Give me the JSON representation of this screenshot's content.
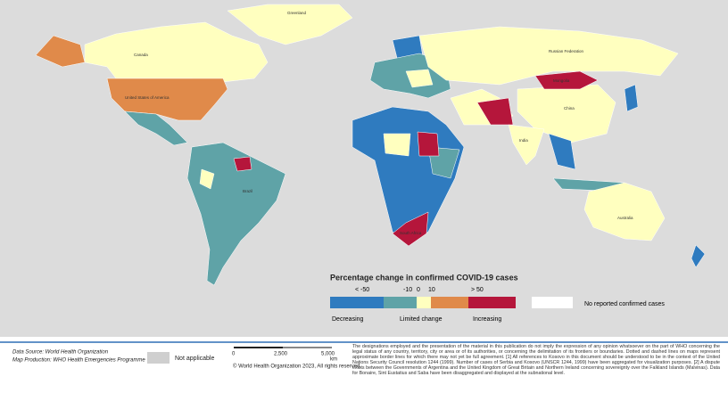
{
  "map": {
    "country_labels": [
      "Greenland",
      "Canada",
      "United States of America",
      "Brazil",
      "Russian Federation",
      "China",
      "India",
      "Australia",
      "South Africa",
      "Mongolia"
    ]
  },
  "legend": {
    "title": "Percentage change in confirmed COVID-19 cases",
    "ticks": [
      "< -50",
      "-10",
      "0",
      "10",
      "> 50"
    ],
    "classes": [
      "Decreasing",
      "Limited change",
      "Increasing"
    ],
    "no_data": "No reported confirmed cases"
  },
  "footer": {
    "data_source": "Data Source: World Health Organization",
    "map_production": "Map Production: WHO Health Emergencies Programme",
    "not_applicable": "Not applicable",
    "scale": [
      "0",
      "2,500",
      "5,000"
    ],
    "scale_unit": "km",
    "copyright": "© World Health Organization 2023, All rights reserved.",
    "disclaimer": "The designations employed and the presentation of the material in this publication do not imply the expression of any opinion whatsoever on the part of WHO concerning the legal status of any country, territory, city or area or of its authorities, or concerning the delimitation of its frontiers or boundaries. Dotted and dashed lines on maps represent approximate border lines for which there may not yet be full agreement. [1] All references to Kosovo in this document should be understood to be in the context of the United Nations Security Council resolution 1244 (1999). Number of cases of Serbia and Kosovo (UNSCR 1244, 1999) have been aggregated for visualization purposes. [2] A dispute exists between the Governments of Argentina and the United Kingdom of Great Britain and Northern Ireland concerning sovereignty over the Falkland Islands (Malvinas). Data for Bonaire, Sint Eustatius and Saba have been disaggregated and displayed at the subnational level."
  }
}
